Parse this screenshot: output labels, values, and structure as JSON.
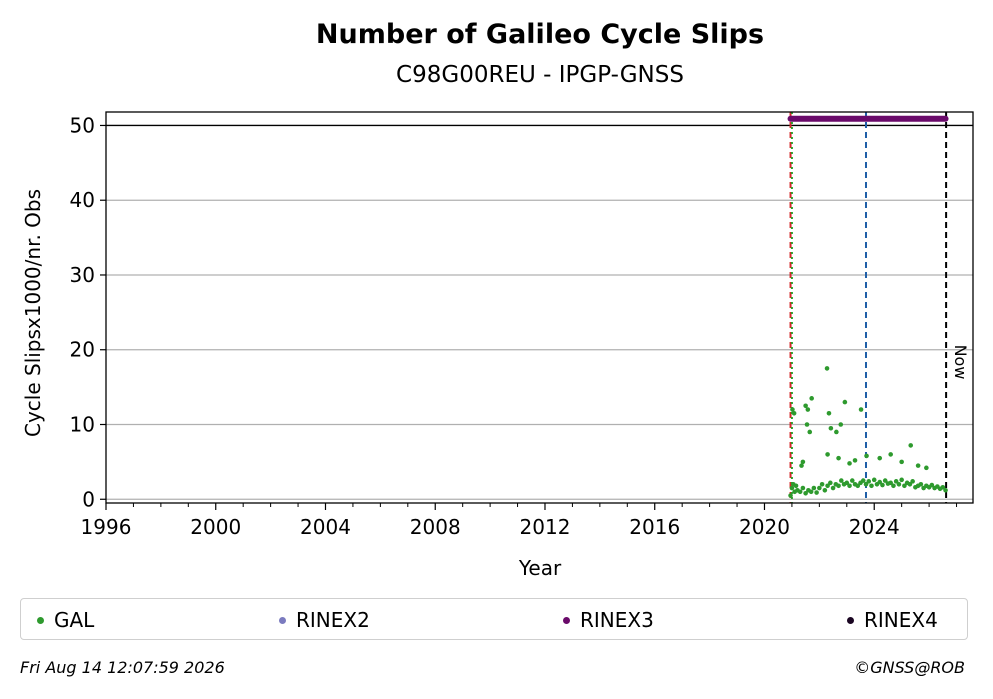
{
  "chart_data": {
    "type": "scatter",
    "title": "Number of Galileo Cycle Slips",
    "subtitle": "C98G00REU - IPGP-GNSS",
    "xlabel": "Year",
    "ylabel": "Cycle Slipsx1000/nr. Obs",
    "xlim": [
      1996,
      2027.6
    ],
    "ylim": [
      -0.5,
      51.8
    ],
    "x_ticks": [
      1996,
      2000,
      2004,
      2008,
      2012,
      2016,
      2020,
      2024
    ],
    "x_tick_labels": [
      "1996",
      "2000",
      "2004",
      "2008",
      "2012",
      "2016",
      "2020",
      "2024"
    ],
    "y_ticks": [
      0,
      10,
      20,
      30,
      40,
      50
    ],
    "y_tick_labels": [
      "0",
      "10",
      "20",
      "30",
      "40",
      "50"
    ],
    "grid": "y",
    "legend_placement": "bottom",
    "vlines": [
      {
        "x": 2020.95,
        "color": "#d62728",
        "style": "dashed"
      },
      {
        "x": 2021.0,
        "color": "#2ca02c",
        "style": "dotted"
      },
      {
        "x": 2023.7,
        "color": "#1f5fa8",
        "style": "dashed"
      },
      {
        "x": 2026.62,
        "color": "#000000",
        "style": "dashed",
        "label": "Now"
      }
    ],
    "series": [
      {
        "name": "GAL",
        "color": "#2e9a2e",
        "x": [
          2020.95,
          2021.0,
          2021.05,
          2021.1,
          2021.15,
          2021.2,
          2021.3,
          2021.4,
          2021.5,
          2021.6,
          2021.7,
          2021.8,
          2021.9,
          2022.0,
          2022.1,
          2022.2,
          2022.3,
          2022.4,
          2022.5,
          2022.6,
          2022.7,
          2022.8,
          2022.9,
          2023.0,
          2023.1,
          2023.2,
          2023.3,
          2023.4,
          2023.5,
          2023.6,
          2023.7,
          2023.8,
          2023.9,
          2024.0,
          2024.1,
          2024.2,
          2024.3,
          2024.4,
          2024.5,
          2024.6,
          2024.7,
          2024.8,
          2024.9,
          2025.0,
          2025.1,
          2025.2,
          2025.3,
          2025.4,
          2025.5,
          2025.6,
          2025.7,
          2025.8,
          2025.9,
          2026.0,
          2026.1,
          2026.2,
          2026.3,
          2026.4,
          2026.5,
          2026.6,
          2021.02,
          2021.08,
          2021.5,
          2021.58,
          2021.65,
          2021.72,
          2021.55,
          2022.28,
          2022.35,
          2022.42,
          2022.62,
          2022.78,
          2022.93,
          2023.52,
          2023.72,
          2025.33,
          2021.35,
          2021.4,
          2022.3,
          2022.7,
          2023.1,
          2023.3,
          2024.2,
          2024.6,
          2025.0,
          2025.6,
          2025.9
        ],
        "y": [
          0.5,
          1.5,
          2.0,
          1.0,
          1.8,
          1.2,
          1.0,
          1.5,
          0.8,
          1.2,
          1.0,
          1.5,
          0.9,
          1.5,
          2.0,
          1.2,
          1.8,
          2.2,
          1.5,
          2.0,
          1.8,
          2.5,
          2.0,
          2.2,
          1.8,
          2.5,
          2.0,
          1.8,
          2.2,
          2.5,
          2.0,
          2.4,
          1.8,
          2.6,
          2.0,
          2.3,
          1.9,
          2.5,
          2.1,
          2.2,
          1.8,
          2.4,
          2.0,
          2.6,
          1.8,
          2.2,
          2.0,
          2.4,
          1.6,
          1.8,
          2.0,
          1.5,
          1.8,
          1.6,
          1.9,
          1.5,
          1.7,
          1.4,
          1.6,
          1.2,
          12.0,
          11.5,
          12.5,
          12.0,
          9.0,
          13.5,
          10.0,
          17.5,
          11.5,
          9.5,
          9.0,
          10.0,
          13.0,
          12.0,
          5.8,
          7.2,
          4.5,
          5.0,
          6.0,
          5.5,
          4.8,
          5.2,
          5.5,
          6.0,
          5.0,
          4.5,
          4.2
        ]
      },
      {
        "name": "RINEX2",
        "color": "#7b7bbf",
        "x": [],
        "y": []
      },
      {
        "name": "RINEX3",
        "color": "#6a0a6a",
        "x_range": [
          2020.95,
          2026.6
        ],
        "y": 50.9
      },
      {
        "name": "RINEX4",
        "color": "#1a0522",
        "x": [],
        "y": []
      }
    ]
  },
  "legend": [
    {
      "label": "GAL",
      "color": "#2e9a2e"
    },
    {
      "label": "RINEX2",
      "color": "#7b7bbf"
    },
    {
      "label": "RINEX3",
      "color": "#6a0a6a"
    },
    {
      "label": "RINEX4",
      "color": "#1a0522"
    }
  ],
  "now_label": "Now",
  "footer": {
    "timestamp": "Fri Aug 14 12:07:59 2026",
    "credit": "©GNSS@ROB"
  }
}
